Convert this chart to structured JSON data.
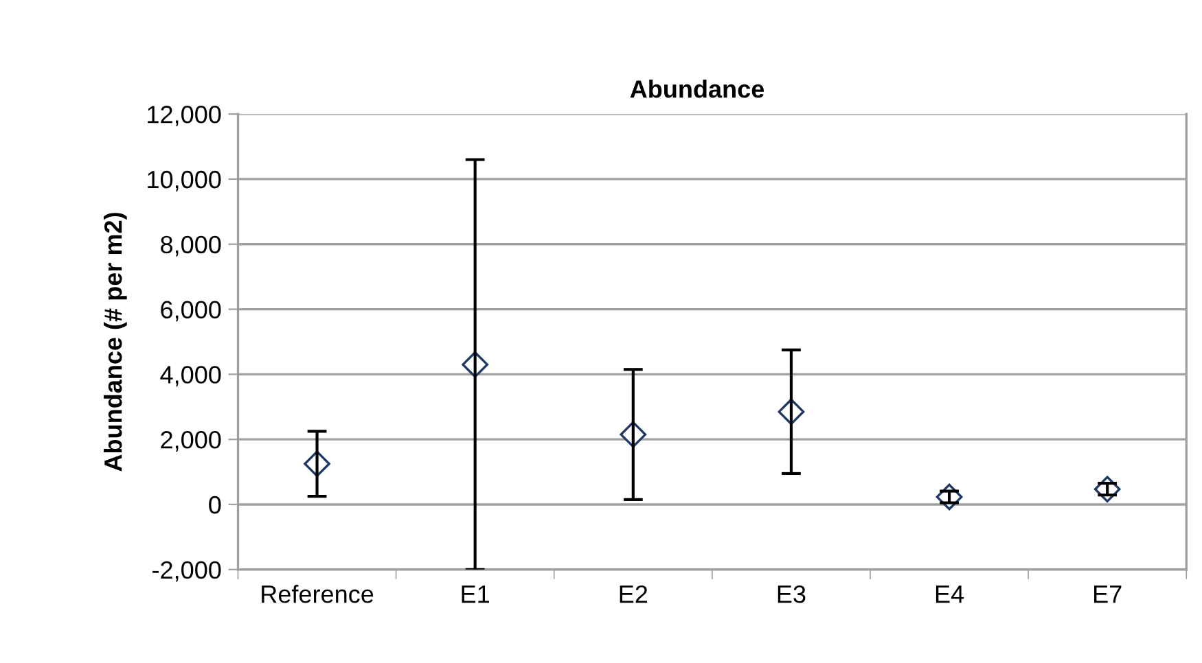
{
  "chart_data": {
    "type": "scatter",
    "title": "Abundance",
    "ylabel": "Abundance (# per m2)",
    "categories": [
      "Reference",
      "E1",
      "E2",
      "E3",
      "E4",
      "E7"
    ],
    "values": [
      1250,
      4300,
      2150,
      2850,
      230,
      470
    ],
    "errors": [
      1000,
      6300,
      2000,
      1900,
      180,
      180
    ],
    "color": "#1f3864",
    "marker": "diamond",
    "ylim": [
      -2000,
      12000
    ],
    "yticks": [
      {
        "value": -2000,
        "label": "-2,000"
      },
      0,
      {
        "value": 2000,
        "label": "2,000"
      },
      {
        "value": 4000,
        "label": "4,000"
      },
      {
        "value": 6000,
        "label": "6,000"
      },
      {
        "value": 8000,
        "label": "8,000"
      },
      {
        "value": 10000,
        "label": "10,000"
      },
      {
        "value": 12000,
        "label": "12,000"
      }
    ],
    "grid": "y"
  }
}
